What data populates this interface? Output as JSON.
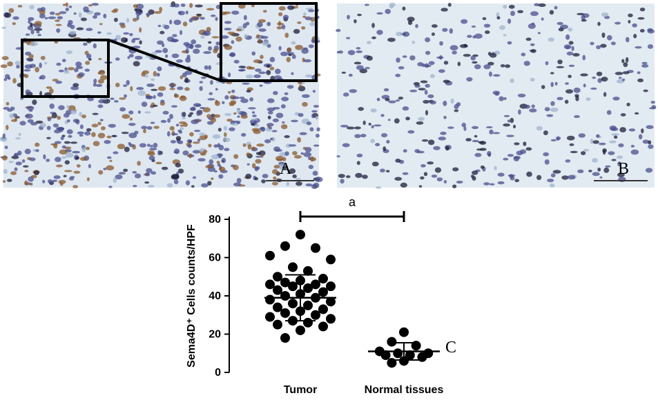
{
  "panels": {
    "A": "A",
    "B": "B",
    "C": "C"
  },
  "chart_data": {
    "type": "dot",
    "ylabel": "Sema4D⁺ Cells counts/HPF",
    "annotation": "a",
    "categories": [
      "Tumor",
      "Normal tissues"
    ],
    "values": [
      [
        72,
        66,
        65,
        61,
        59,
        55,
        53,
        50,
        49,
        48,
        47,
        46,
        46,
        45,
        45,
        44,
        43,
        42,
        41,
        40,
        39,
        38,
        37,
        36,
        35,
        34,
        33,
        32,
        31,
        30,
        29,
        28,
        27,
        26,
        25,
        24,
        22,
        18
      ],
      [
        21,
        16,
        14,
        11,
        10,
        10,
        9,
        9,
        8,
        6,
        5
      ]
    ],
    "means": [
      39,
      11
    ],
    "sds": [
      12,
      4.5
    ],
    "color": "#000000",
    "ylim": [
      0,
      80
    ],
    "yticks": [
      0,
      20,
      40,
      60,
      80
    ]
  }
}
